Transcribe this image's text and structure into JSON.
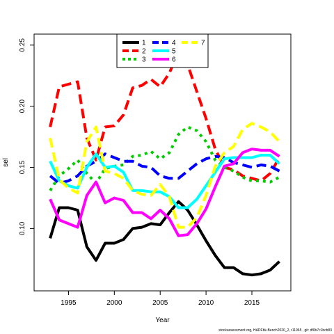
{
  "chart_data": {
    "type": "line",
    "title": "",
    "xlabel": "Year",
    "ylabel": "sel",
    "xlim": [
      1991.25,
      2019.25
    ],
    "ylim": [
      0.049,
      0.259
    ],
    "x_ticks": [
      1995,
      2000,
      2005,
      2010,
      2015
    ],
    "y_ticks": [
      0.1,
      0.15,
      0.2,
      0.25
    ],
    "y_tick_labels": [
      "0.10",
      "0.15",
      "0.20",
      "0.25"
    ],
    "grid": false,
    "legend_position": "top-center",
    "x": [
      1993,
      1994,
      1995,
      1996,
      1997,
      1998,
      1999,
      2000,
      2001,
      2002,
      2003,
      2004,
      2005,
      2006,
      2007,
      2008,
      2009,
      2010,
      2011,
      2012,
      2013,
      2014,
      2015,
      2016,
      2017,
      2018
    ],
    "series": [
      {
        "name": "1",
        "color": "#000000",
        "dash": "solid",
        "values": [
          0.092,
          0.117,
          0.117,
          0.115,
          0.085,
          0.074,
          0.088,
          0.088,
          0.091,
          0.1,
          0.101,
          0.104,
          0.103,
          0.113,
          0.122,
          0.115,
          0.103,
          0.09,
          0.078,
          0.068,
          0.068,
          0.063,
          0.062,
          0.063,
          0.066,
          0.073
        ]
      },
      {
        "name": "2",
        "color": "#ff0000",
        "dash": "dashed",
        "values": [
          0.183,
          0.216,
          0.218,
          0.22,
          0.174,
          0.156,
          0.183,
          0.184,
          0.193,
          0.215,
          0.217,
          0.222,
          0.216,
          0.227,
          0.245,
          0.234,
          0.212,
          0.19,
          0.165,
          0.15,
          0.148,
          0.143,
          0.141,
          0.139,
          0.145,
          0.158
        ]
      },
      {
        "name": "3",
        "color": "#00cc00",
        "dash": "dotted",
        "values": [
          0.131,
          0.143,
          0.149,
          0.156,
          0.145,
          0.137,
          0.149,
          0.151,
          0.152,
          0.159,
          0.16,
          0.163,
          0.157,
          0.162,
          0.177,
          0.183,
          0.18,
          0.171,
          0.156,
          0.15,
          0.147,
          0.142,
          0.139,
          0.139,
          0.138,
          0.142
        ]
      },
      {
        "name": "4",
        "color": "#0000ff",
        "dash": "dashed",
        "values": [
          0.143,
          0.137,
          0.139,
          0.143,
          0.151,
          0.155,
          0.161,
          0.158,
          0.155,
          0.155,
          0.151,
          0.15,
          0.143,
          0.141,
          0.141,
          0.147,
          0.153,
          0.157,
          0.159,
          0.158,
          0.154,
          0.152,
          0.15,
          0.152,
          0.151,
          0.147
        ]
      },
      {
        "name": "5",
        "color": "#00ffff",
        "dash": "solid",
        "values": [
          0.155,
          0.139,
          0.135,
          0.133,
          0.15,
          0.161,
          0.15,
          0.151,
          0.146,
          0.131,
          0.131,
          0.13,
          0.13,
          0.126,
          0.117,
          0.117,
          0.124,
          0.135,
          0.146,
          0.157,
          0.158,
          0.158,
          0.158,
          0.16,
          0.16,
          0.153
        ]
      },
      {
        "name": "6",
        "color": "#ff00ff",
        "dash": "solid",
        "values": [
          0.124,
          0.107,
          0.104,
          0.101,
          0.127,
          0.138,
          0.121,
          0.125,
          0.123,
          0.113,
          0.113,
          0.108,
          0.115,
          0.108,
          0.094,
          0.095,
          0.104,
          0.116,
          0.134,
          0.151,
          0.153,
          0.162,
          0.165,
          0.164,
          0.164,
          0.159
        ]
      },
      {
        "name": "7",
        "color": "#ffff00",
        "dash": "dashed",
        "values": [
          0.174,
          0.14,
          0.133,
          0.129,
          0.171,
          0.183,
          0.147,
          0.145,
          0.141,
          0.131,
          0.128,
          0.127,
          0.136,
          0.126,
          0.101,
          0.101,
          0.109,
          0.127,
          0.151,
          0.162,
          0.167,
          0.181,
          0.186,
          0.183,
          0.179,
          0.171
        ]
      }
    ]
  },
  "legend": {
    "columns": [
      [
        "0",
        "1",
        "2"
      ],
      [
        "3",
        "4",
        "5"
      ],
      [
        "6"
      ]
    ]
  },
  "footnote": "stockassessment.org, HADFbk-Bench2020_2, r11965 , git: df0b7c1bcb83"
}
